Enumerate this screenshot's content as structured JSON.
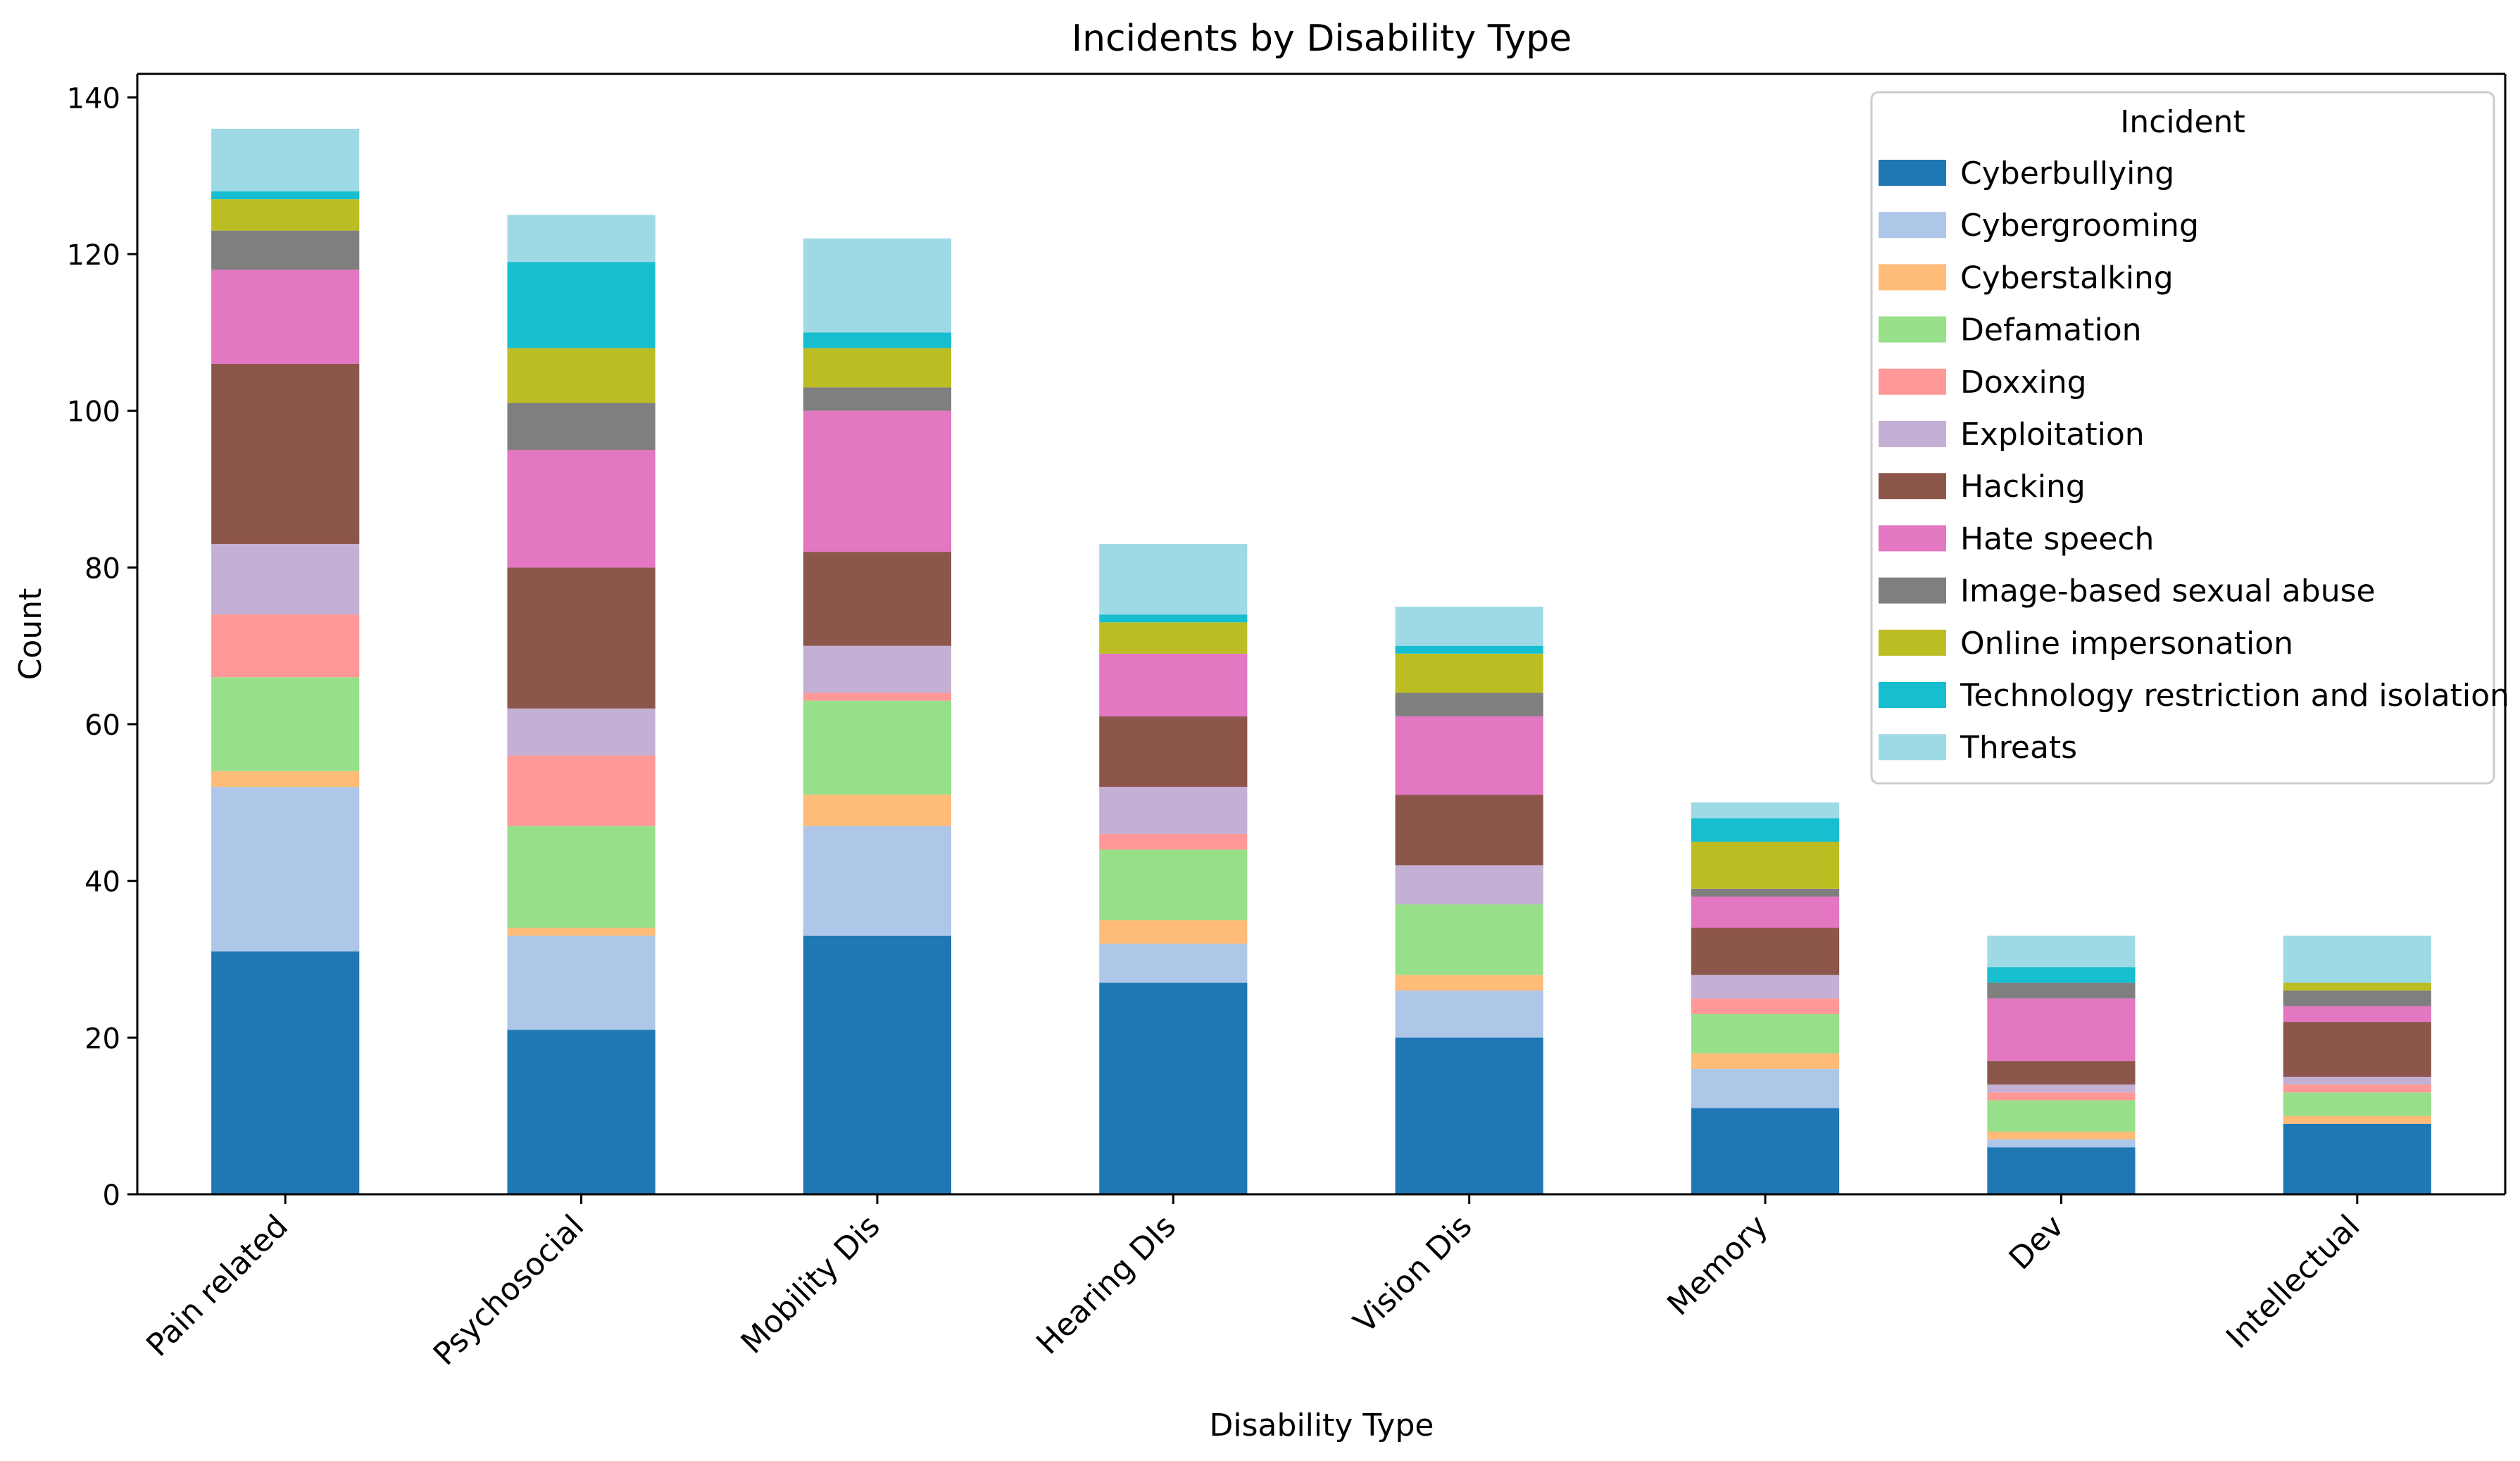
{
  "chart_data": {
    "type": "bar",
    "stacked": true,
    "title": "Incidents by Disability Type",
    "xlabel": "Disability Type",
    "ylabel": "Count",
    "ylim": [
      0,
      143
    ],
    "yticks": [
      0,
      20,
      40,
      60,
      80,
      100,
      120,
      140
    ],
    "categories": [
      "Pain related",
      "Psychosocial",
      "Mobility Dis",
      "Hearing DIs",
      "Vision Dis",
      "Memory",
      "Dev",
      "Intellectual"
    ],
    "legend_title": "Incident",
    "legend_position": "top-right",
    "series": [
      {
        "name": "Cyberbullying",
        "color": "#1f77b4",
        "values": [
          31,
          21,
          33,
          27,
          20,
          11,
          6,
          9
        ]
      },
      {
        "name": "Cybergrooming",
        "color": "#aec7e8",
        "values": [
          21,
          12,
          14,
          5,
          6,
          5,
          1,
          0
        ]
      },
      {
        "name": "Cyberstalking",
        "color": "#ffbb78",
        "values": [
          2,
          1,
          4,
          3,
          2,
          2,
          1,
          1
        ]
      },
      {
        "name": "Defamation",
        "color": "#98df8a",
        "values": [
          12,
          13,
          12,
          9,
          9,
          5,
          4,
          3
        ]
      },
      {
        "name": "Doxxing",
        "color": "#ff9896",
        "values": [
          8,
          9,
          1,
          2,
          0,
          2,
          1,
          1
        ]
      },
      {
        "name": "Exploitation",
        "color": "#c5b0d5",
        "values": [
          9,
          6,
          6,
          6,
          5,
          3,
          1,
          1
        ]
      },
      {
        "name": "Hacking",
        "color": "#8c564b",
        "values": [
          23,
          18,
          12,
          9,
          9,
          6,
          3,
          7
        ]
      },
      {
        "name": "Hate speech",
        "color": "#e377c2",
        "values": [
          12,
          15,
          18,
          8,
          10,
          4,
          8,
          2
        ]
      },
      {
        "name": "Image-based sexual abuse",
        "color": "#7f7f7f",
        "values": [
          5,
          6,
          3,
          0,
          3,
          1,
          2,
          2
        ]
      },
      {
        "name": "Online impersonation",
        "color": "#bcbd22",
        "values": [
          4,
          7,
          5,
          4,
          5,
          6,
          0,
          1
        ]
      },
      {
        "name": "Technology restriction and isolation",
        "color": "#17becf",
        "values": [
          1,
          11,
          2,
          1,
          1,
          3,
          2,
          0
        ]
      },
      {
        "name": "Threats",
        "color": "#9edae5",
        "values": [
          8,
          6,
          12,
          9,
          5,
          2,
          4,
          6
        ]
      }
    ]
  }
}
